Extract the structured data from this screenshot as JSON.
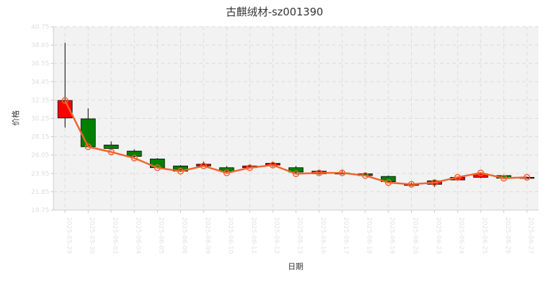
{
  "chart_data": {
    "type": "candlestick",
    "title": "古麒绒材-sz001390",
    "xlabel": "日期",
    "ylabel": "价格",
    "ylim": [
      19.75,
      40.75
    ],
    "yticks": [
      "19.75",
      "21.85",
      "23.95",
      "26.05",
      "28.15",
      "30.25",
      "32.35",
      "34.45",
      "36.55",
      "38.65",
      "40.75"
    ],
    "grid": true,
    "colors": {
      "up": "#ff0000",
      "down": "#008000",
      "line": "#f2642d",
      "marker": "#f2642d"
    },
    "categories": [
      "2025-05-29",
      "2025-05-30",
      "2025-06-03",
      "2025-06-04",
      "2025-06-05",
      "2025-06-06",
      "2025-06-09",
      "2025-06-10",
      "2025-06-11",
      "2025-06-12",
      "2025-06-13",
      "2025-06-16",
      "2025-06-17",
      "2025-06-18",
      "2025-06-19",
      "2025-06-20",
      "2025-06-23",
      "2025-06-24",
      "2025-06-25",
      "2025-06-26",
      "2025-06-27"
    ],
    "open": [
      30.3,
      30.2,
      27.2,
      26.5,
      25.6,
      24.8,
      24.8,
      24.6,
      24.6,
      24.9,
      24.6,
      23.9,
      24.0,
      23.9,
      23.6,
      22.7,
      22.7,
      23.2,
      23.5,
      23.7,
      23.5
    ],
    "close": [
      32.3,
      27.0,
      26.8,
      25.9,
      24.6,
      24.2,
      25.0,
      24.2,
      24.8,
      25.1,
      24.1,
      24.2,
      24.0,
      23.7,
      23.0,
      22.7,
      23.1,
      23.5,
      23.9,
      23.4,
      23.5
    ],
    "high": [
      38.9,
      31.4,
      27.6,
      26.7,
      25.7,
      24.9,
      25.3,
      24.8,
      25.0,
      25.3,
      24.8,
      24.3,
      24.3,
      24.0,
      23.7,
      22.9,
      23.2,
      23.6,
      24.1,
      23.8,
      23.6
    ],
    "low": [
      29.2,
      27.0,
      26.6,
      25.8,
      24.5,
      24.1,
      24.7,
      24.1,
      24.5,
      24.7,
      24.0,
      23.8,
      23.9,
      23.6,
      22.9,
      22.6,
      22.4,
      23.1,
      23.4,
      23.3,
      23.4
    ],
    "line": [
      32.3,
      27.0,
      26.4,
      25.7,
      24.6,
      24.2,
      24.8,
      24.0,
      24.6,
      24.9,
      23.9,
      24.0,
      24.0,
      23.7,
      22.9,
      22.7,
      22.9,
      23.5,
      24.0,
      23.4,
      23.5
    ]
  }
}
